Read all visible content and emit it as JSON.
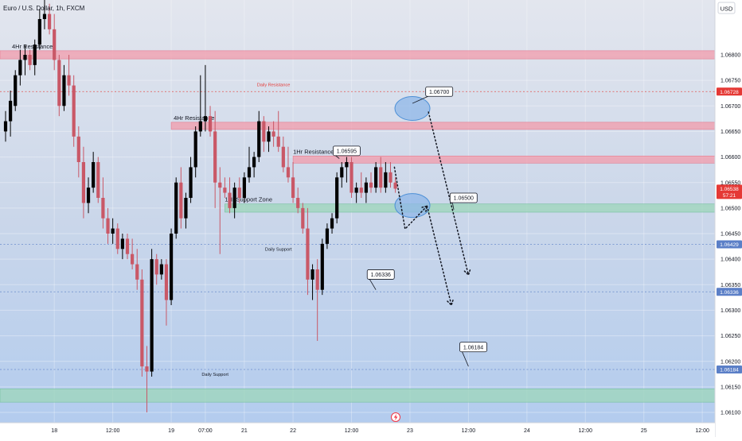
{
  "chart_data": {
    "type": "candlestick",
    "title": "Euro / U.S. Dollar, 1h, FXCM",
    "currency": "USD",
    "y_ticks": [
      "1.06800",
      "1.06750",
      "1.06700",
      "1.06650",
      "1.06600",
      "1.06550",
      "1.06500",
      "1.06450",
      "1.06400",
      "1.06350",
      "1.06300",
      "1.06250",
      "1.06200",
      "1.06150",
      "1.06100"
    ],
    "x_ticks": [
      {
        "label": "18",
        "t": 10
      },
      {
        "label": "12:00",
        "t": 22
      },
      {
        "label": "19",
        "t": 34
      },
      {
        "label": "07:00",
        "t": 41
      },
      {
        "label": "21",
        "t": 49
      },
      {
        "label": "22",
        "t": 59
      },
      {
        "label": "12:00",
        "t": 71
      },
      {
        "label": "23",
        "t": 83
      },
      {
        "label": "12:00",
        "t": 95
      },
      {
        "label": "24",
        "t": 107
      },
      {
        "label": "12:00",
        "t": 119
      },
      {
        "label": "25",
        "t": 131
      },
      {
        "label": "12:00",
        "t": 143
      }
    ],
    "price_tags": [
      {
        "label": "1.06728",
        "price": 1.06728,
        "color": "#e53935"
      },
      {
        "label": "1.06538",
        "sublabel": "57:21",
        "price": 1.06538,
        "color": "#e53935"
      },
      {
        "label": "1.06429",
        "price": 1.06429,
        "color": "#5b7fc7"
      },
      {
        "label": "1.06336",
        "price": 1.06336,
        "color": "#5b7fc7"
      },
      {
        "label": "1.06184",
        "price": 1.06184,
        "color": "#5b7fc7"
      }
    ],
    "zones": [
      {
        "label": "4Hr Resistance",
        "y1": 1.06792,
        "y2": 1.06808,
        "x_from": 0,
        "x_to": 146,
        "kind": "resistance",
        "label_t": 0
      },
      {
        "label": "4Hr Resistance",
        "y1": 1.06654,
        "y2": 1.06668,
        "x_from": 34,
        "x_to": 146,
        "kind": "resistance",
        "label_t": 34.5
      },
      {
        "label": "1Hr Resistance",
        "y1": 1.06588,
        "y2": 1.06602,
        "x_from": 59,
        "x_to": 146,
        "kind": "resistance",
        "label_t": 59
      },
      {
        "label": "1Hr Support Zone",
        "y1": 1.06492,
        "y2": 1.06508,
        "x_from": 45,
        "x_to": 146,
        "kind": "support",
        "label_t": 45
      },
      {
        "label": "",
        "y1": 1.0612,
        "y2": 1.06146,
        "x_from": 0,
        "x_to": 146,
        "kind": "support",
        "label_t": 0
      }
    ],
    "levels": [
      {
        "label": "Daily Resistance",
        "price": 1.06728,
        "color": "#e53935",
        "label_t": 55
      },
      {
        "label": "Daily Support",
        "price": 1.06429,
        "color": "#5b7fc7",
        "label_t": 56
      },
      {
        "label": "",
        "price": 1.06336,
        "color": "#5b7fc7",
        "label_t": 0
      },
      {
        "label": "Daily Support",
        "price": 1.06184,
        "color": "#5b7fc7",
        "label_t": 43
      }
    ],
    "callouts": [
      {
        "label": "1.06700",
        "box_t": 89,
        "box_price": 1.06728,
        "tip_t": 83.5,
        "tip_price": 1.06705
      },
      {
        "label": "1.06595",
        "box_t": 70,
        "box_price": 1.06612,
        "tip_t": 68.5,
        "tip_price": 1.06597
      },
      {
        "label": "1.06500",
        "box_t": 94,
        "box_price": 1.0652,
        "tip_t": 92,
        "tip_price": 1.06497
      },
      {
        "label": "1.06336",
        "box_t": 77,
        "box_price": 1.0637,
        "tip_t": 76,
        "tip_price": 1.0634
      },
      {
        "label": "1.06184",
        "box_t": 96,
        "box_price": 1.06228,
        "tip_t": 95,
        "tip_price": 1.0619
      }
    ],
    "ellipses": [
      {
        "t": 83.5,
        "price": 1.06695
      },
      {
        "t": 83.5,
        "price": 1.06505
      }
    ],
    "projections": [
      [
        [
          79.8,
          1.0658
        ],
        [
          82.0,
          1.06459
        ],
        [
          86.5,
          1.06504
        ]
      ],
      [
        [
          86.5,
          1.06504
        ],
        [
          91.5,
          1.0631
        ]
      ],
      [
        [
          86.8,
          1.06688
        ],
        [
          95.0,
          1.06369
        ]
      ]
    ],
    "candles": [
      [
        1.0665,
        1.0669,
        1.0663,
        1.0667
      ],
      [
        1.0667,
        1.0673,
        1.0664,
        1.0671
      ],
      [
        1.067,
        1.0677,
        1.0669,
        1.0676
      ],
      [
        1.0676,
        1.0681,
        1.0674,
        1.0679
      ],
      [
        1.0679,
        1.0682,
        1.0676,
        1.068
      ],
      [
        1.068,
        1.0681,
        1.0677,
        1.0678
      ],
      [
        1.0678,
        1.0683,
        1.0676,
        1.0682
      ],
      [
        1.0682,
        1.0689,
        1.0681,
        1.0687
      ],
      [
        1.0687,
        1.0691,
        1.0685,
        1.0688
      ],
      [
        1.0688,
        1.069,
        1.0684,
        1.0685
      ],
      [
        1.0685,
        1.0688,
        1.0677,
        1.0679
      ],
      [
        1.0679,
        1.068,
        1.0668,
        1.067
      ],
      [
        1.067,
        1.0678,
        1.0669,
        1.0676
      ],
      [
        1.0676,
        1.068,
        1.0672,
        1.0674
      ],
      [
        1.0674,
        1.0676,
        1.0662,
        1.0664
      ],
      [
        1.0664,
        1.0666,
        1.0656,
        1.0659
      ],
      [
        1.0659,
        1.0662,
        1.0648,
        1.0651
      ],
      [
        1.0651,
        1.0656,
        1.0649,
        1.0654
      ],
      [
        1.0654,
        1.0661,
        1.0653,
        1.0659
      ],
      [
        1.0659,
        1.066,
        1.0651,
        1.0652
      ],
      [
        1.0652,
        1.0656,
        1.0646,
        1.0648
      ],
      [
        1.0648,
        1.065,
        1.0643,
        1.0645
      ],
      [
        1.0645,
        1.0648,
        1.0643,
        1.0646
      ],
      [
        1.0646,
        1.0647,
        1.0641,
        1.0642
      ],
      [
        1.0642,
        1.0645,
        1.064,
        1.0644
      ],
      [
        1.0644,
        1.0645,
        1.064,
        1.0641
      ],
      [
        1.0641,
        1.0644,
        1.0638,
        1.0639
      ],
      [
        1.0639,
        1.0642,
        1.0634,
        1.0636
      ],
      [
        1.0636,
        1.0638,
        1.0617,
        1.0619
      ],
      [
        1.0619,
        1.0623,
        1.061,
        1.0618
      ],
      [
        1.0618,
        1.0642,
        1.0617,
        1.064
      ],
      [
        1.064,
        1.0641,
        1.0635,
        1.0637
      ],
      [
        1.0637,
        1.064,
        1.0636,
        1.0639
      ],
      [
        1.0639,
        1.064,
        1.0627,
        1.0632
      ],
      [
        1.0632,
        1.0646,
        1.0631,
        1.0645
      ],
      [
        1.0645,
        1.0656,
        1.0644,
        1.0655
      ],
      [
        1.0655,
        1.0658,
        1.0646,
        1.0648
      ],
      [
        1.0648,
        1.0653,
        1.0646,
        1.0652
      ],
      [
        1.0652,
        1.066,
        1.0651,
        1.0658
      ],
      [
        1.0658,
        1.0666,
        1.0656,
        1.0665
      ],
      [
        1.0665,
        1.0676,
        1.0664,
        1.0667
      ],
      [
        1.0667,
        1.0678,
        1.0665,
        1.0668
      ],
      [
        1.0668,
        1.067,
        1.0664,
        1.0665
      ],
      [
        1.0665,
        1.0669,
        1.065,
        1.0655
      ],
      [
        1.0655,
        1.0658,
        1.0641,
        1.0654
      ],
      [
        1.0654,
        1.0656,
        1.0652,
        1.0653
      ],
      [
        1.0653,
        1.0656,
        1.0649,
        1.065
      ],
      [
        1.065,
        1.0655,
        1.0648,
        1.0654
      ],
      [
        1.0654,
        1.0656,
        1.0651,
        1.0652
      ],
      [
        1.0652,
        1.0657,
        1.0651,
        1.0656
      ],
      [
        1.0656,
        1.0662,
        1.0655,
        1.0658
      ],
      [
        1.0658,
        1.0661,
        1.0656,
        1.066
      ],
      [
        1.066,
        1.0669,
        1.0659,
        1.0667
      ],
      [
        1.0667,
        1.0668,
        1.0661,
        1.0663
      ],
      [
        1.0663,
        1.0666,
        1.0661,
        1.0665
      ],
      [
        1.0665,
        1.0667,
        1.0662,
        1.0664
      ],
      [
        1.0664,
        1.0669,
        1.0661,
        1.0662
      ],
      [
        1.0662,
        1.0664,
        1.0657,
        1.0658
      ],
      [
        1.0658,
        1.0662,
        1.0655,
        1.0656
      ],
      [
        1.0656,
        1.0659,
        1.0651,
        1.0652
      ],
      [
        1.0652,
        1.0654,
        1.0649,
        1.065
      ],
      [
        1.065,
        1.0651,
        1.0645,
        1.0646
      ],
      [
        1.0646,
        1.065,
        1.0633,
        1.0636
      ],
      [
        1.0636,
        1.0639,
        1.0632,
        1.0638
      ],
      [
        1.0638,
        1.064,
        1.0624,
        1.0634
      ],
      [
        1.0634,
        1.0644,
        1.0633,
        1.0643
      ],
      [
        1.0643,
        1.0647,
        1.0642,
        1.0646
      ],
      [
        1.0646,
        1.0649,
        1.0645,
        1.0648
      ],
      [
        1.0648,
        1.0657,
        1.0647,
        1.0656
      ],
      [
        1.0656,
        1.0659,
        1.0654,
        1.0658
      ],
      [
        1.0658,
        1.066,
        1.0655,
        1.0659
      ],
      [
        1.0659,
        1.066,
        1.0652,
        1.0653
      ],
      [
        1.0653,
        1.0655,
        1.0651,
        1.0654
      ],
      [
        1.0654,
        1.0657,
        1.0652,
        1.0653
      ],
      [
        1.0653,
        1.0656,
        1.0651,
        1.0655
      ],
      [
        1.0655,
        1.0657,
        1.0653,
        1.0654
      ],
      [
        1.0654,
        1.0659,
        1.0653,
        1.0658
      ],
      [
        1.0658,
        1.066,
        1.0653,
        1.0654
      ],
      [
        1.0654,
        1.0659,
        1.0653,
        1.0657
      ],
      [
        1.0657,
        1.0659,
        1.0654,
        1.0655
      ],
      [
        1.0655,
        1.0656,
        1.0653,
        1.06538
      ]
    ]
  }
}
